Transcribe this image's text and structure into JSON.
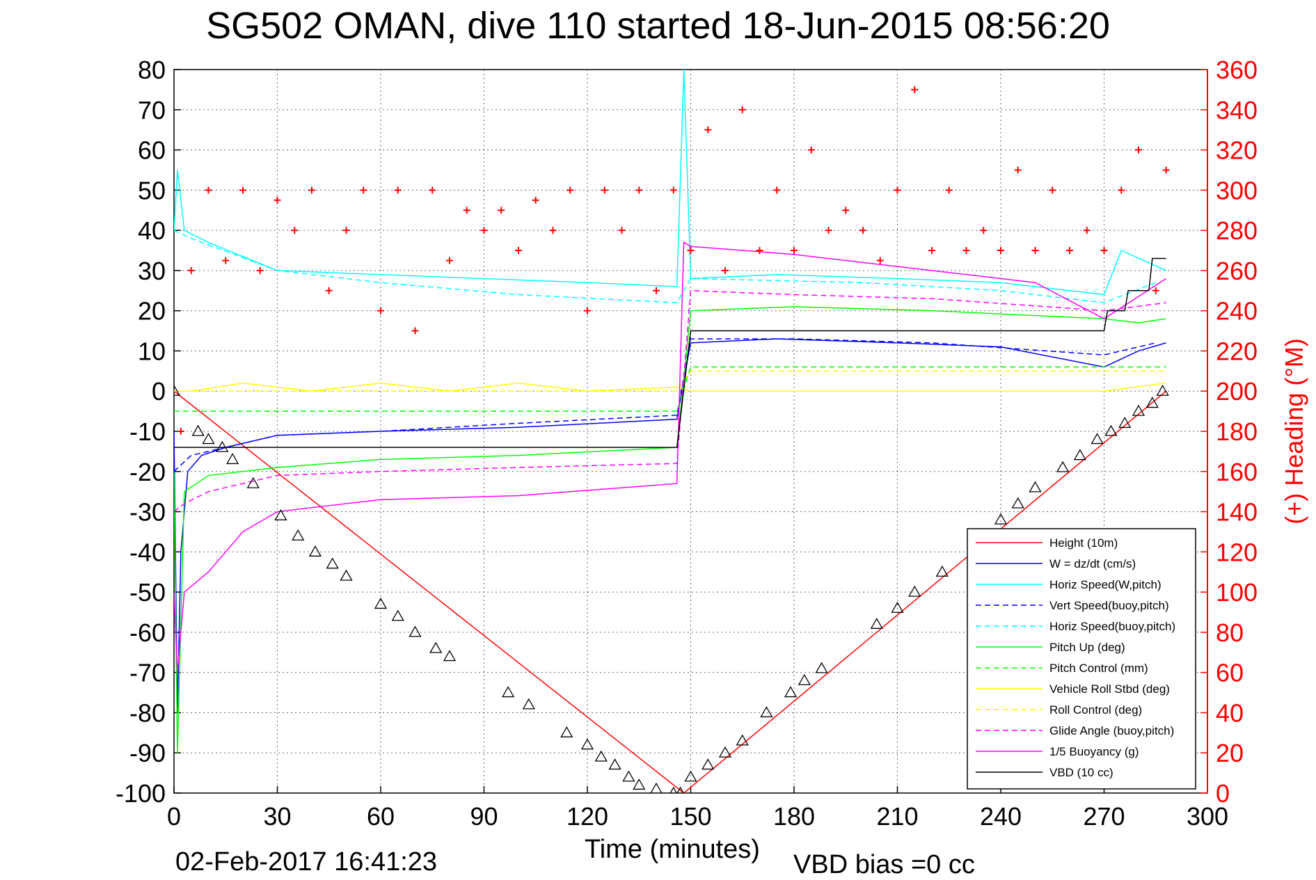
{
  "chart_data": {
    "type": "line",
    "title": "SG502 OMAN, dive 110 started 18-Jun-2015 08:56:20",
    "xlabel": "Time (minutes)",
    "ylabel_right": "(+) Heading (°M)",
    "footer_left": "02-Feb-2017 16:41:23",
    "footer_right": "VBD bias =0 cc",
    "xlim": [
      0,
      300
    ],
    "ylim": [
      -100,
      80
    ],
    "ylim_right": [
      0,
      360
    ],
    "x_ticks": [
      0,
      30,
      60,
      90,
      120,
      150,
      180,
      210,
      240,
      270,
      300
    ],
    "y_ticks": [
      80,
      70,
      60,
      50,
      40,
      30,
      20,
      10,
      0,
      -10,
      -20,
      -30,
      -40,
      -50,
      -60,
      -70,
      -80,
      -90,
      -100
    ],
    "y_ticks_right": [
      360,
      340,
      320,
      300,
      280,
      260,
      240,
      220,
      200,
      180,
      160,
      140,
      120,
      100,
      80,
      60,
      40,
      20,
      0
    ],
    "grid": true,
    "legend_position": "bottom-right",
    "series": [
      {
        "name": "Height (10m)",
        "color": "#ff0000",
        "style": "solid",
        "x": [
          0,
          148,
          288
        ],
        "y": [
          0,
          -100,
          0
        ]
      },
      {
        "name": "W = dz/dt (cm/s)",
        "color": "#0000ff",
        "style": "solid",
        "x": [
          0,
          1,
          2,
          4,
          8,
          15,
          30,
          60,
          100,
          146,
          148,
          150,
          175,
          210,
          240,
          270,
          280,
          288
        ],
        "y": [
          -10,
          -80,
          -40,
          -20,
          -16,
          -14,
          -11,
          -10,
          -9,
          -7,
          3,
          12,
          13,
          12,
          11,
          6,
          10,
          12
        ]
      },
      {
        "name": "Horiz Speed(W,pitch)",
        "color": "#00ffff",
        "style": "solid",
        "x": [
          0,
          1,
          3,
          10,
          30,
          60,
          90,
          120,
          146,
          148,
          150,
          175,
          210,
          240,
          270,
          275,
          288
        ],
        "y": [
          40,
          55,
          40,
          37,
          30,
          29,
          28,
          27,
          26,
          80,
          28,
          29,
          28,
          27,
          24,
          35,
          30
        ]
      },
      {
        "name": "Vert Speed(buoy,pitch)",
        "color": "#0000ff",
        "style": "dashed",
        "x": [
          0,
          5,
          30,
          60,
          100,
          146,
          150,
          180,
          220,
          270,
          285
        ],
        "y": [
          -20,
          -16,
          -11,
          -10,
          -8,
          -6,
          13,
          13,
          12,
          9,
          12
        ]
      },
      {
        "name": "Horiz Speed(buoy,pitch)",
        "color": "#00ffff",
        "style": "dashed",
        "x": [
          0,
          5,
          30,
          60,
          100,
          146,
          150,
          200,
          240,
          270,
          285
        ],
        "y": [
          40,
          38,
          30,
          27,
          24,
          22,
          28,
          27,
          25,
          22,
          27
        ]
      },
      {
        "name": "Pitch Up (deg)",
        "color": "#00ff00",
        "style": "solid",
        "x": [
          0,
          1,
          3,
          10,
          30,
          60,
          100,
          146,
          150,
          180,
          220,
          270,
          280,
          288
        ],
        "y": [
          -20,
          -90,
          -25,
          -21,
          -19,
          -17,
          -16,
          -14,
          20,
          21,
          20,
          18,
          17,
          18
        ]
      },
      {
        "name": "Pitch Control (mm)",
        "color": "#00ff00",
        "style": "dashed",
        "x": [
          0,
          5,
          146,
          150,
          288
        ],
        "y": [
          -5,
          -5,
          -5,
          6,
          6
        ]
      },
      {
        "name": "Vehicle Roll Stbd (deg)",
        "color": "#ffff00",
        "style": "solid",
        "x": [
          0,
          5,
          20,
          40,
          60,
          80,
          100,
          120,
          146,
          150,
          180,
          210,
          240,
          270,
          288
        ],
        "y": [
          0,
          0,
          2,
          0,
          2,
          0,
          2,
          0,
          1,
          0,
          0,
          0,
          0,
          0,
          2
        ]
      },
      {
        "name": "Roll Control (deg)",
        "color": "#ffff00",
        "style": "dashed",
        "x": [
          0,
          50,
          100,
          146,
          150,
          200,
          250,
          288
        ],
        "y": [
          0,
          0,
          0,
          0,
          5,
          5,
          5,
          5
        ]
      },
      {
        "name": "Glide Angle (buoy,pitch)",
        "color": "#ff00ff",
        "style": "dashed",
        "x": [
          0,
          3,
          10,
          30,
          60,
          100,
          146,
          150,
          180,
          220,
          270,
          288
        ],
        "y": [
          -30,
          -28,
          -25,
          -21,
          -20,
          -19,
          -18,
          25,
          24,
          23,
          20,
          22
        ]
      },
      {
        "name": "1/5 Buoyancy (g)",
        "color": "#ff00ff",
        "style": "solid",
        "x": [
          0,
          1,
          3,
          10,
          20,
          30,
          60,
          100,
          146,
          148,
          150,
          180,
          220,
          250,
          270,
          288
        ],
        "y": [
          -50,
          -70,
          -50,
          -45,
          -35,
          -30,
          -27,
          -26,
          -23,
          37,
          36,
          34,
          30,
          27,
          18,
          28
        ]
      },
      {
        "name": "VBD (10 cc)",
        "color": "#000000",
        "style": "solid",
        "x": [
          0,
          2,
          145,
          146,
          150,
          270,
          271,
          276,
          277,
          283,
          284,
          288
        ],
        "y": [
          -14,
          -14,
          -14,
          -14,
          15,
          15,
          20,
          20,
          25,
          25,
          33,
          33
        ]
      },
      {
        "name": "Heading",
        "color": "#ff0000",
        "style": "markers",
        "axis": "right",
        "x": [
          2,
          5,
          10,
          15,
          20,
          25,
          30,
          35,
          40,
          45,
          50,
          55,
          60,
          65,
          70,
          75,
          80,
          85,
          90,
          95,
          100,
          105,
          110,
          115,
          120,
          125,
          130,
          135,
          140,
          145,
          150,
          155,
          160,
          165,
          170,
          175,
          180,
          185,
          190,
          195,
          200,
          205,
          210,
          215,
          220,
          225,
          230,
          235,
          240,
          245,
          250,
          255,
          260,
          265,
          270,
          275,
          280,
          285,
          288
        ],
        "y": [
          180,
          260,
          300,
          265,
          300,
          260,
          295,
          280,
          300,
          250,
          280,
          300,
          240,
          300,
          230,
          300,
          265,
          290,
          280,
          290,
          270,
          295,
          280,
          300,
          240,
          300,
          280,
          300,
          250,
          300,
          270,
          330,
          260,
          340,
          270,
          300,
          270,
          320,
          280,
          290,
          280,
          265,
          300,
          350,
          270,
          300,
          270,
          280,
          270,
          310,
          270,
          300,
          270,
          280,
          270,
          300,
          320,
          250,
          310
        ]
      },
      {
        "name": "Depth markers",
        "color": "#000000",
        "style": "triangles",
        "x": [
          0,
          7,
          10,
          14,
          17,
          23,
          31,
          36,
          41,
          46,
          50,
          60,
          65,
          70,
          76,
          80,
          97,
          103,
          114,
          120,
          124,
          128,
          132,
          135,
          140,
          145,
          147,
          150,
          155,
          160,
          165,
          172,
          179,
          183,
          188,
          204,
          210,
          215,
          223,
          234,
          240,
          245,
          250,
          258,
          263,
          268,
          272,
          276,
          280,
          284,
          287
        ],
        "y": [
          0,
          -10,
          -12,
          -14,
          -17,
          -23,
          -31,
          -36,
          -40,
          -43,
          -46,
          -53,
          -56,
          -60,
          -64,
          -66,
          -75,
          -78,
          -85,
          -88,
          -91,
          -93,
          -96,
          -98,
          -99,
          -100,
          -100,
          -96,
          -93,
          -90,
          -87,
          -80,
          -75,
          -72,
          -69,
          -58,
          -54,
          -50,
          -45,
          -36,
          -32,
          -28,
          -24,
          -19,
          -16,
          -12,
          -10,
          -8,
          -5,
          -3,
          0
        ]
      }
    ]
  }
}
